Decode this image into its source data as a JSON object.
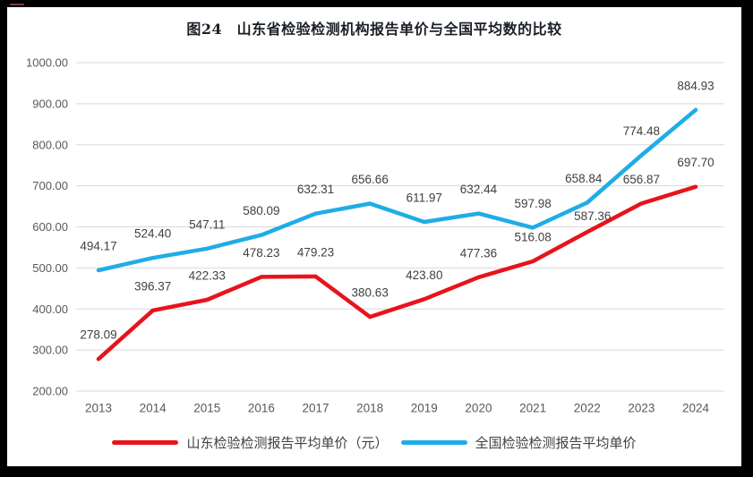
{
  "title": "图24　山东省检验检测机构报告单价与全国平均数的比较",
  "chart_data": {
    "type": "line",
    "title": "图24 山东省检验检测机构报告单价与全国平均数的比较",
    "categories": [
      "2013",
      "2014",
      "2015",
      "2016",
      "2017",
      "2018",
      "2019",
      "2020",
      "2021",
      "2022",
      "2023",
      "2024"
    ],
    "series": [
      {
        "name": "山东检验检测报告平均单价（元）",
        "color": "#e8131c",
        "values": [
          278.09,
          396.37,
          422.33,
          478.23,
          479.23,
          380.63,
          423.8,
          477.36,
          516.08,
          587.36,
          656.87,
          697.7
        ]
      },
      {
        "name": "全国检验检测报告平均单价",
        "color": "#1fade6",
        "values": [
          494.17,
          524.4,
          547.11,
          580.09,
          632.31,
          656.66,
          611.97,
          632.44,
          597.98,
          658.84,
          774.48,
          884.93
        ]
      }
    ],
    "ylim": [
      200,
      1000
    ],
    "ytick_step": 100,
    "ytick_labels": [
      "200.00",
      "300.00",
      "400.00",
      "500.00",
      "600.00",
      "700.00",
      "800.00",
      "900.00",
      "1000.00"
    ],
    "grid": "horizontal",
    "legend_position": "bottom",
    "point_labels": true,
    "xlabel": "",
    "ylabel": ""
  },
  "style_colors": {
    "grid": "#d9d9d9",
    "axis_text": "#595959",
    "point_label_text": "#404040",
    "frame": "#000000",
    "background": "#ffffff"
  }
}
